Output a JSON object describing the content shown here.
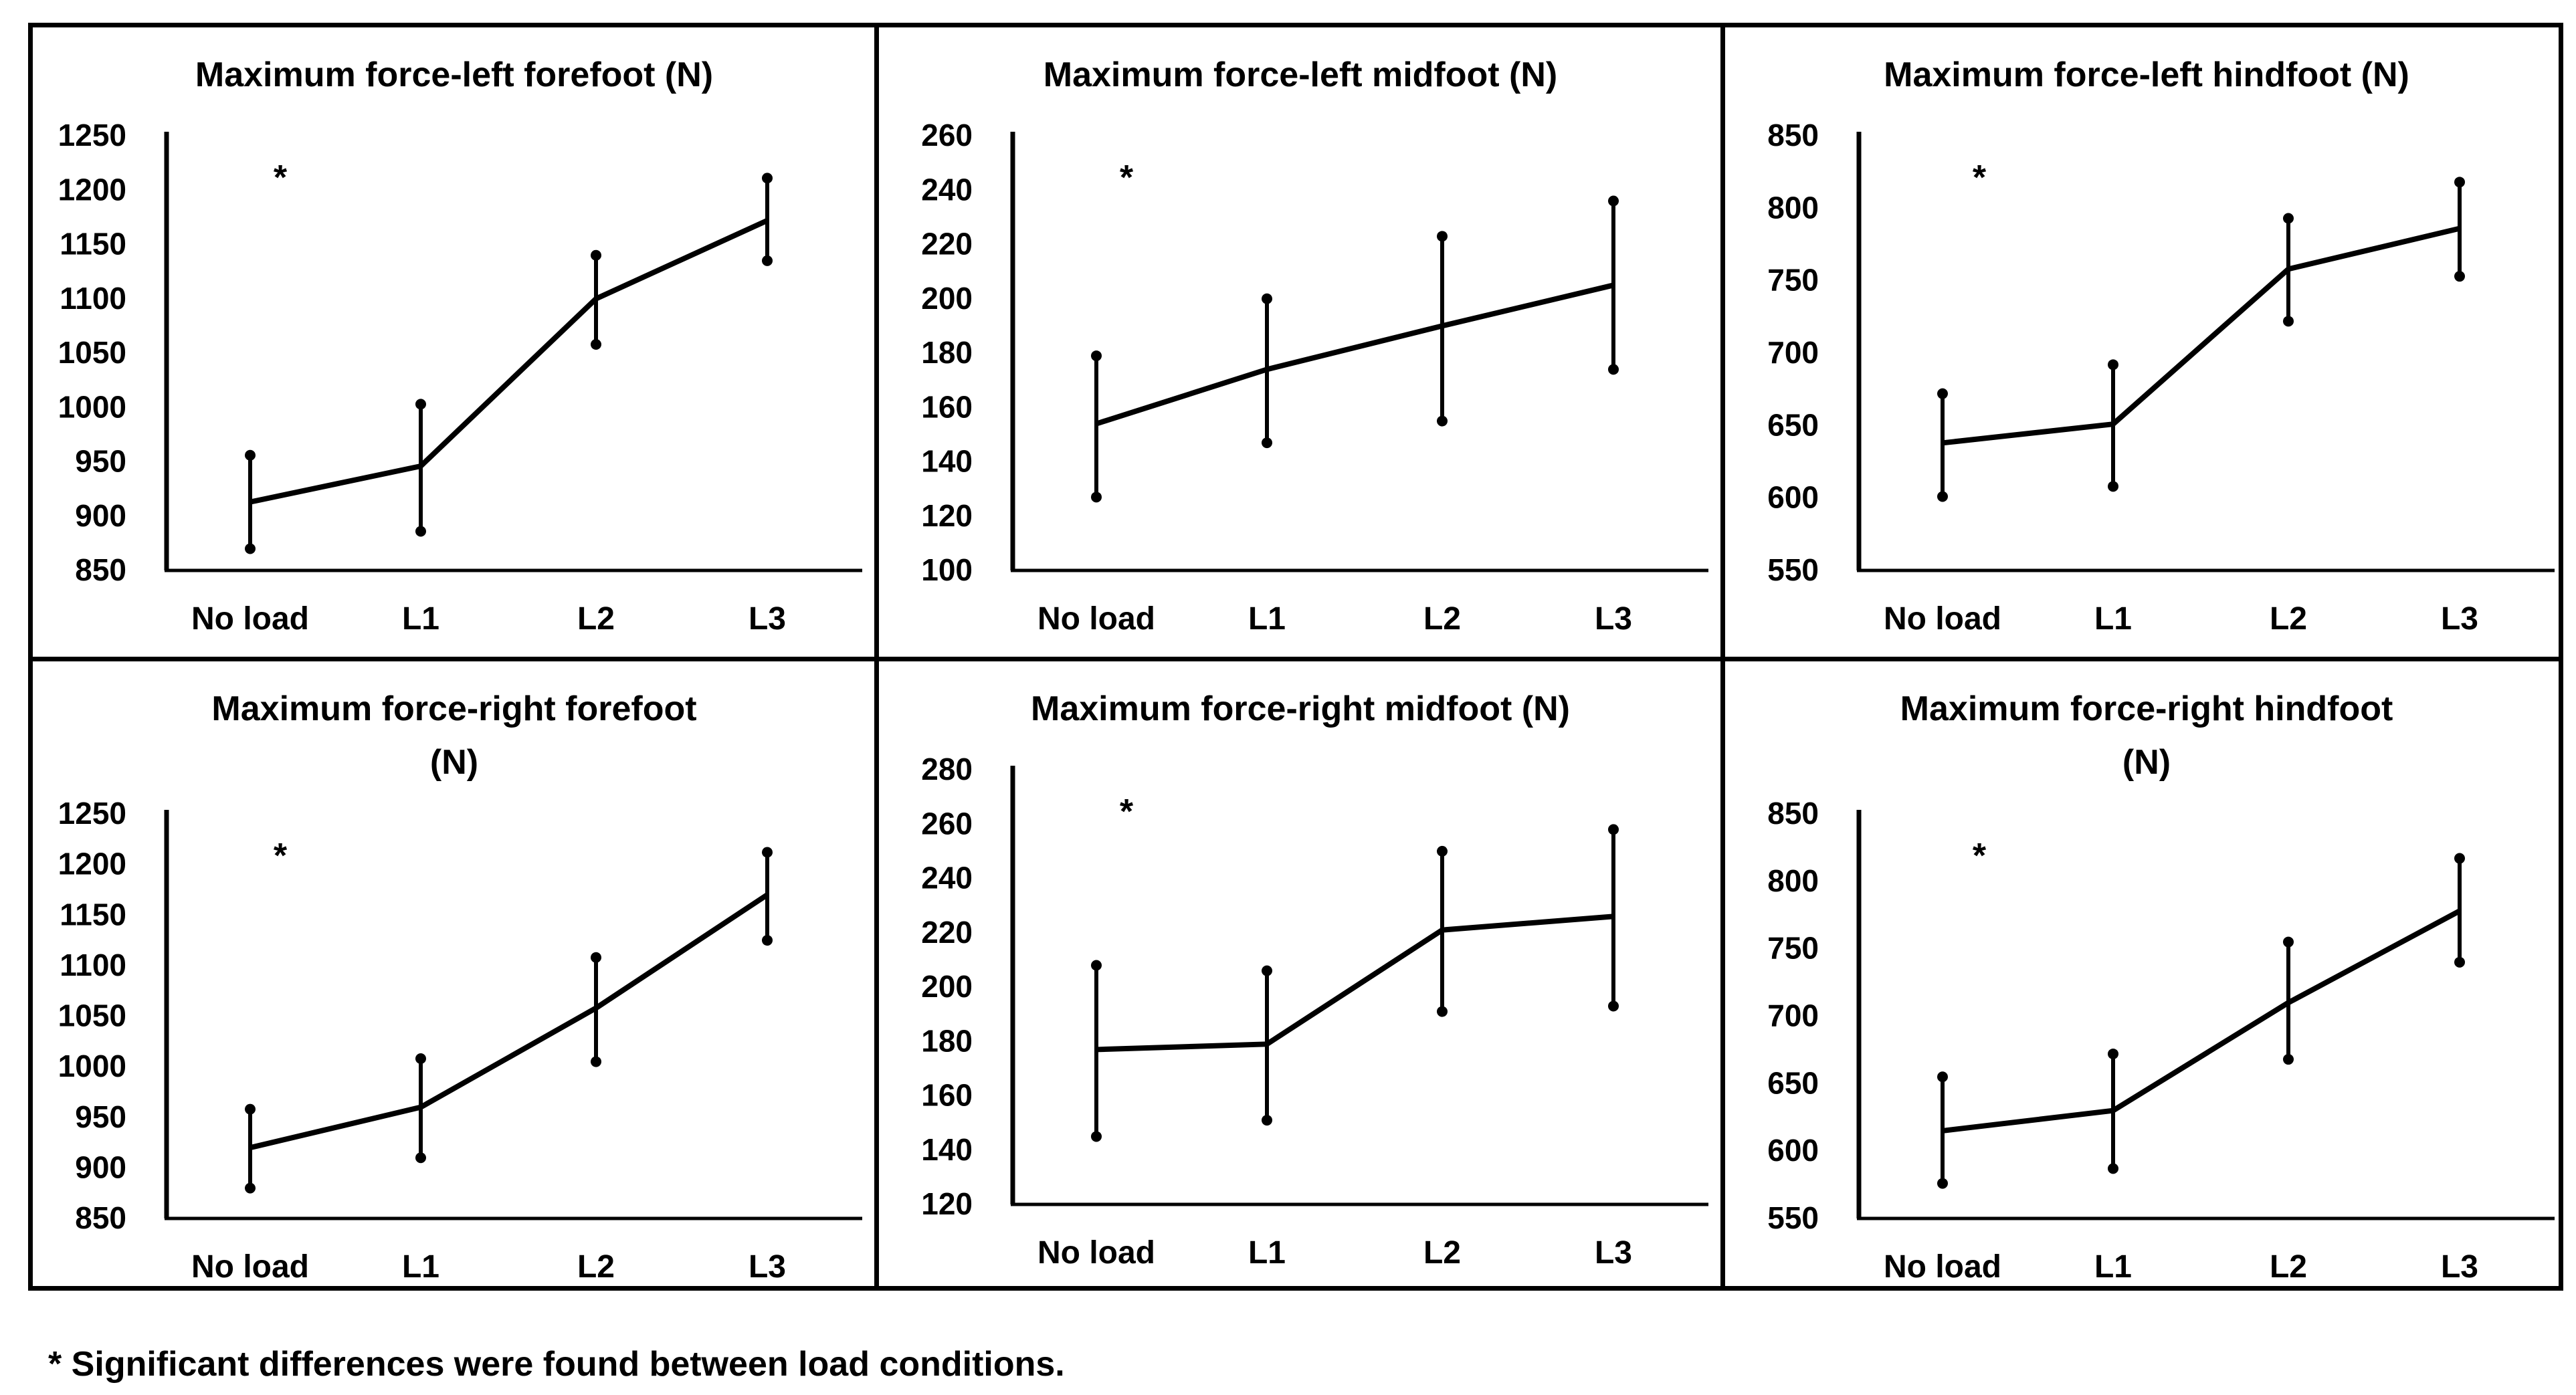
{
  "chart_data": [
    {
      "type": "line",
      "title": [
        "Maximum force-left forefoot (N)"
      ],
      "categories": [
        "No load",
        "L1",
        "L2",
        "L3"
      ],
      "values": [
        913,
        946,
        1100,
        1172
      ],
      "error_low": [
        870,
        886,
        1058,
        1135
      ],
      "error_high": [
        956,
        1003,
        1140,
        1211
      ],
      "ylim": [
        850,
        1250
      ],
      "yticks": [
        850,
        900,
        950,
        1000,
        1050,
        1100,
        1150,
        1200,
        1250
      ],
      "annotation": "*",
      "xlabel": "",
      "ylabel": "",
      "grid": false
    },
    {
      "type": "line",
      "title": [
        "Maximum force-left midfoot (N)"
      ],
      "categories": [
        "No load",
        "L1",
        "L2",
        "L3"
      ],
      "values": [
        154,
        174,
        190,
        205
      ],
      "error_low": [
        127,
        147,
        155,
        174
      ],
      "error_high": [
        179,
        200,
        223,
        236
      ],
      "ylim": [
        100,
        260
      ],
      "yticks": [
        100,
        120,
        140,
        160,
        180,
        200,
        220,
        240,
        260
      ],
      "annotation": "*",
      "xlabel": "",
      "ylabel": "",
      "grid": false
    },
    {
      "type": "line",
      "title": [
        "Maximum force-left hindfoot (N)"
      ],
      "categories": [
        "No load",
        "L1",
        "L2",
        "L3"
      ],
      "values": [
        638,
        651,
        758,
        786
      ],
      "error_low": [
        601,
        608,
        722,
        753
      ],
      "error_high": [
        672,
        692,
        793,
        818
      ],
      "ylim": [
        550,
        850
      ],
      "yticks": [
        550,
        600,
        650,
        700,
        750,
        800,
        850
      ],
      "annotation": "*",
      "xlabel": "",
      "ylabel": "",
      "grid": false
    },
    {
      "type": "line",
      "title": [
        "Maximum force-right forefoot",
        "(N)"
      ],
      "categories": [
        "No load",
        "L1",
        "L2",
        "L3"
      ],
      "values": [
        920,
        960,
        1058,
        1170
      ],
      "error_low": [
        880,
        910,
        1005,
        1125
      ],
      "error_high": [
        958,
        1008,
        1108,
        1212
      ],
      "ylim": [
        850,
        1250
      ],
      "yticks": [
        850,
        900,
        950,
        1000,
        1050,
        1100,
        1150,
        1200,
        1250
      ],
      "annotation": "*",
      "xlabel": "",
      "ylabel": "",
      "grid": false
    },
    {
      "type": "line",
      "title": [
        "Maximum force-right midfoot (N)"
      ],
      "categories": [
        "No load",
        "L1",
        "L2",
        "L3"
      ],
      "values": [
        177,
        179,
        221,
        226
      ],
      "error_low": [
        145,
        151,
        191,
        193
      ],
      "error_high": [
        208,
        206,
        250,
        258
      ],
      "ylim": [
        120,
        280
      ],
      "yticks": [
        120,
        140,
        160,
        180,
        200,
        220,
        240,
        260,
        280
      ],
      "annotation": "*",
      "xlabel": "",
      "ylabel": "",
      "grid": false
    },
    {
      "type": "line",
      "title": [
        "Maximum force-right hindfoot",
        "(N)"
      ],
      "categories": [
        "No load",
        "L1",
        "L2",
        "L3"
      ],
      "values": [
        615,
        630,
        710,
        778
      ],
      "error_low": [
        576,
        587,
        668,
        740
      ],
      "error_high": [
        655,
        672,
        755,
        817
      ],
      "ylim": [
        550,
        850
      ],
      "yticks": [
        550,
        600,
        650,
        700,
        750,
        800,
        850
      ],
      "annotation": "*",
      "xlabel": "",
      "ylabel": "",
      "grid": false
    }
  ],
  "footnote": "* Significant differences were found between load conditions."
}
